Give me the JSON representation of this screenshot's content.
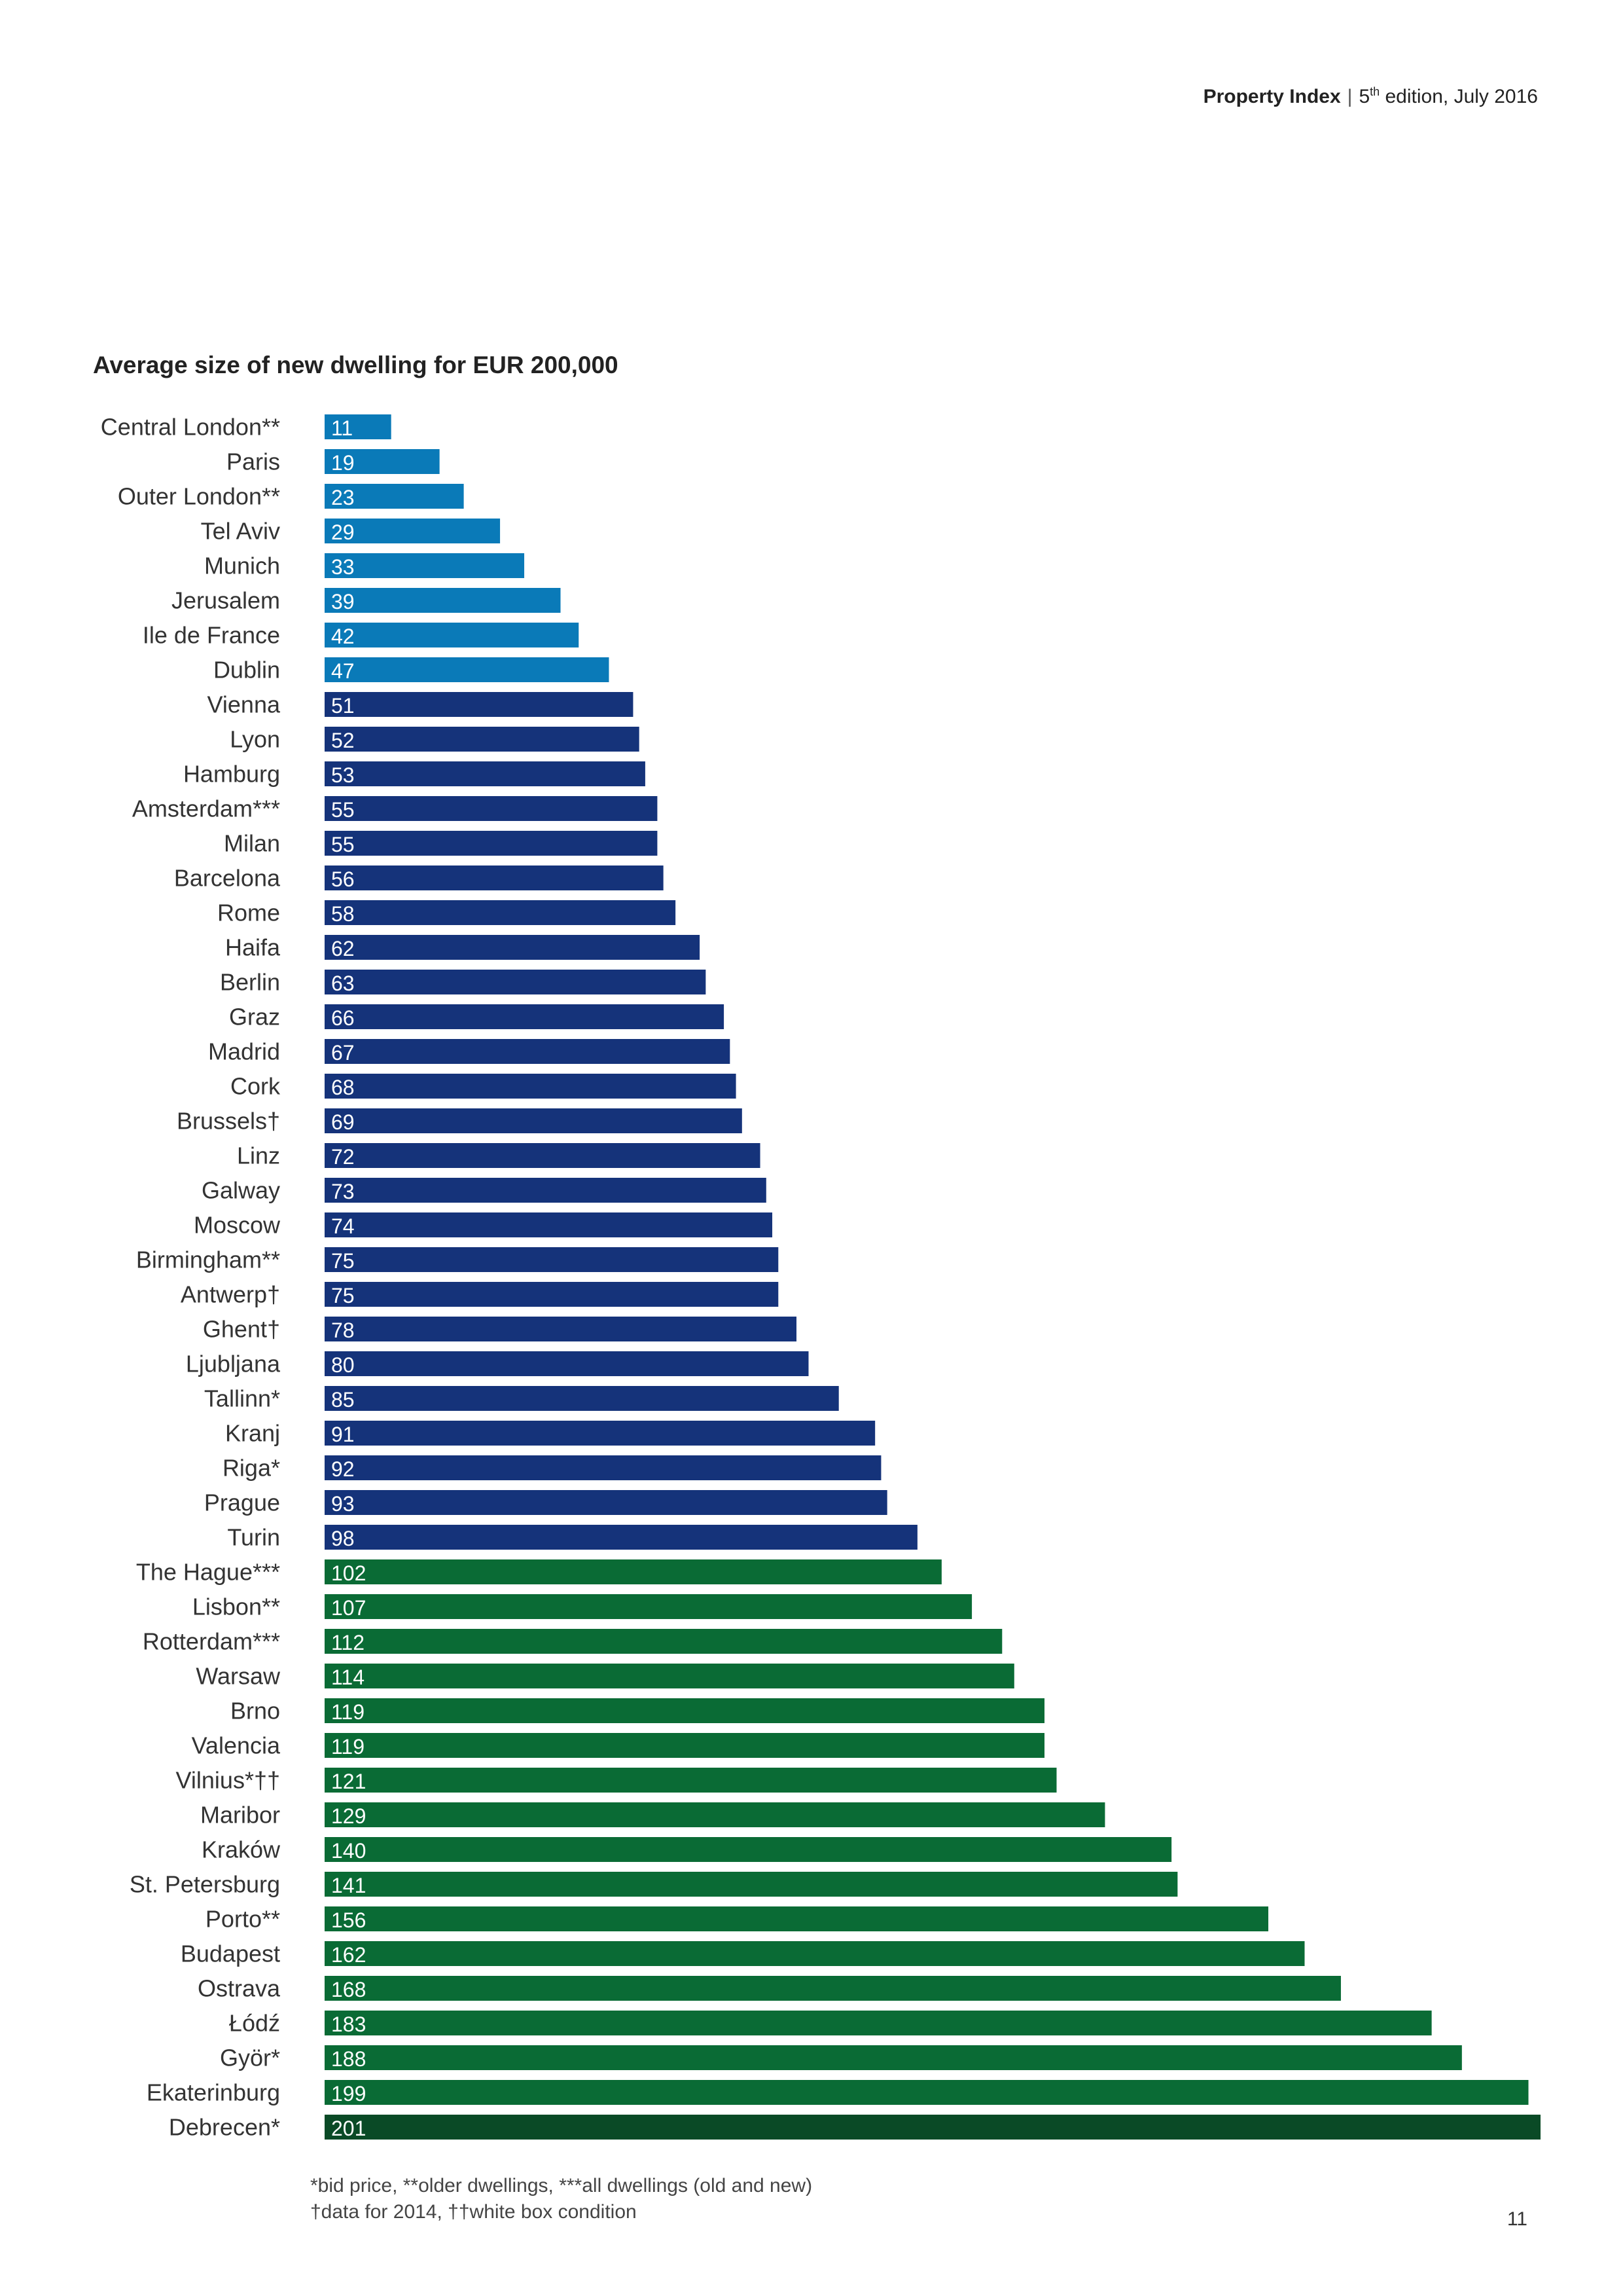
{
  "header": {
    "doc_name": "Property Index",
    "separator": "|",
    "edition_number": "5",
    "edition_suffix": "th",
    "edition_rest": " edition, July 2016"
  },
  "chart_data": {
    "type": "bar",
    "orientation": "horizontal",
    "title": "Average size of new dwelling for EUR 200,000",
    "xlabel": "",
    "ylabel": "",
    "xlim": [
      0,
      201
    ],
    "grid": false,
    "categories": [
      "Central London**",
      "Paris",
      "Outer London**",
      "Tel Aviv",
      "Munich",
      "Jerusalem",
      "Ile de France",
      "Dublin",
      "Vienna",
      "Lyon",
      "Hamburg",
      "Amsterdam***",
      "Milan",
      "Barcelona",
      "Rome",
      "Haifa",
      "Berlin",
      "Graz",
      "Madrid",
      "Cork",
      "Brussels†",
      "Linz",
      "Galway",
      "Moscow",
      "Birmingham**",
      "Antwerp†",
      "Ghent†",
      "Ljubljana",
      "Tallinn*",
      "Kranj",
      "Riga*",
      "Prague",
      "Turin",
      "The Hague***",
      "Lisbon**",
      "Rotterdam***",
      "Warsaw",
      "Brno",
      "Valencia",
      "Vilnius*††",
      "Maribor",
      "Kraków",
      "St. Petersburg",
      "Porto**",
      "Budapest",
      "Ostrava",
      "Łódź",
      "Györ*",
      "Ekaterinburg",
      "Debrecen*"
    ],
    "values": [
      11,
      19,
      23,
      29,
      33,
      39,
      42,
      47,
      51,
      52,
      53,
      55,
      55,
      56,
      58,
      62,
      63,
      66,
      67,
      68,
      69,
      72,
      73,
      74,
      75,
      75,
      78,
      80,
      85,
      91,
      92,
      93,
      98,
      102,
      107,
      112,
      114,
      119,
      119,
      121,
      129,
      140,
      141,
      156,
      162,
      168,
      183,
      188,
      199,
      201
    ],
    "colors": {
      "light_blue": "#0a7ab8",
      "dark_blue": "#15337a",
      "green": "#0a6b35",
      "dark_green": "#0a4a26"
    },
    "color_groups": {
      "light_blue": [
        0,
        7
      ],
      "dark_blue": [
        8,
        32
      ],
      "green": [
        33,
        48
      ],
      "dark_green": [
        49,
        49
      ]
    }
  },
  "footnotes": {
    "line1": "*bid price, **older dwellings, ***all dwellings (old and new)",
    "line2": "†data for 2014, ††white box condition"
  },
  "page_number": "11"
}
